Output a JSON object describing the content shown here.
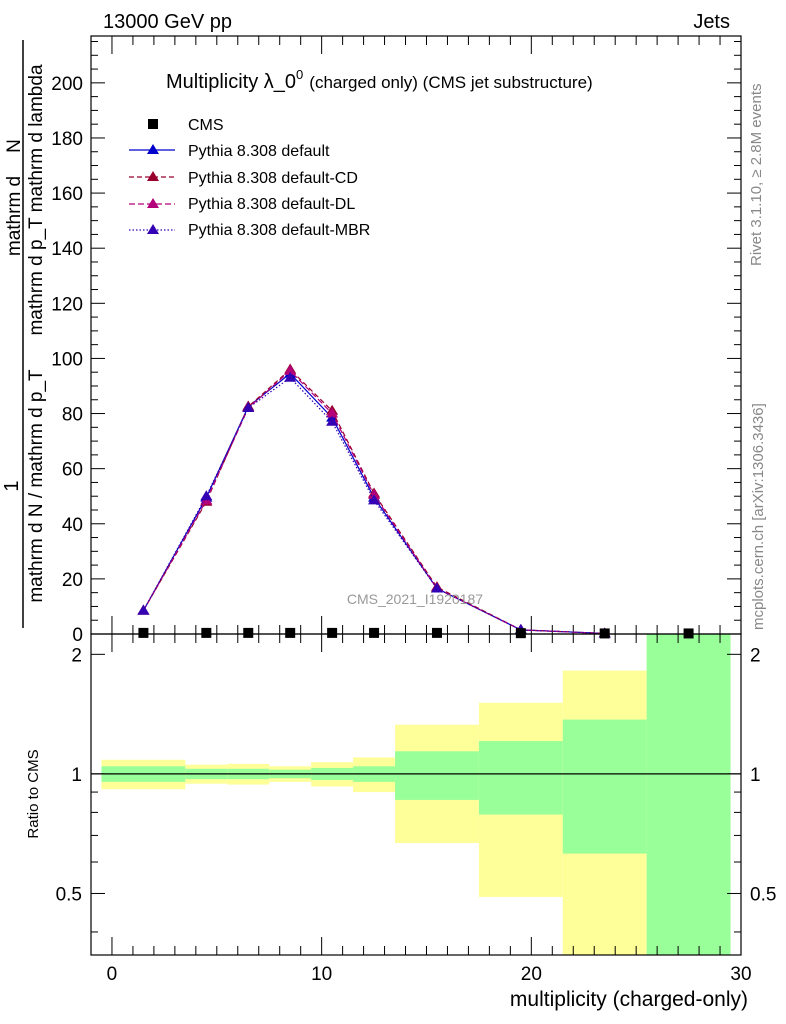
{
  "header": {
    "left": "13000 GeV pp",
    "right": "Jets"
  },
  "side_labels": {
    "rivet": "Rivet 3.1.10, ≥ 2.8M events",
    "mcplots": "mcplots.cern.ch [arXiv:1306.3436]"
  },
  "watermark": "CMS_2021_I1920187",
  "colors": {
    "default": "#0000cc",
    "default_cd": "#99002e",
    "default_dl": "#b3007a",
    "default_mbr": "#3300b3",
    "band_inner": "#99ff99",
    "band_outer": "#ffff99"
  },
  "chart_data": [
    {
      "type": "line",
      "title": "Multiplicity λ_0",
      "title_sup": "0",
      "title_suffix": "(charged only) (CMS jet substructure)",
      "xlabel": "",
      "ylabel_numerator": "1",
      "ylabel_denominator": "mathrm d N / mathrm d p_T",
      "ylabel_rest": "mathrm d",
      "ylabel_rest2": "N",
      "ylabel_rest3": "mathrm d p_T mathrm d lambda",
      "xlim": [
        -1,
        30
      ],
      "ylim": [
        0,
        217
      ],
      "yticks": [
        0,
        20,
        40,
        60,
        80,
        100,
        120,
        140,
        160,
        180,
        200
      ],
      "legend": [
        "CMS",
        "Pythia 8.308 default",
        "Pythia 8.308 default-CD",
        "Pythia 8.308 default-DL",
        "Pythia 8.308 default-MBR"
      ],
      "legend_position": "top-left",
      "cms": {
        "name": "CMS",
        "x": [
          1.5,
          4.5,
          6.5,
          8.5,
          10.5,
          12.5,
          15.5,
          19.5,
          23.5,
          27.5
        ],
        "y": [
          0.4,
          0.4,
          0.4,
          0.4,
          0.4,
          0.4,
          0.4,
          0.3,
          0.2,
          0.2
        ]
      },
      "series": [
        {
          "name": "Pythia 8.308 default",
          "x": [
            1.5,
            4.5,
            6.5,
            8.5,
            10.5,
            12.5,
            15.5,
            19.5,
            23.5
          ],
          "values": [
            8.5,
            49.5,
            82.5,
            94.5,
            78.5,
            49.5,
            16.5,
            1.5,
            0.2
          ]
        },
        {
          "name": "Pythia 8.308 default-CD",
          "x": [
            1.5,
            4.5,
            6.5,
            8.5,
            10.5,
            12.5,
            15.5,
            19.5,
            23.5
          ],
          "values": [
            8.5,
            48,
            82.5,
            96,
            81,
            51,
            17,
            1.5,
            0.2
          ]
        },
        {
          "name": "Pythia 8.308 default-DL",
          "x": [
            1.5,
            4.5,
            6.5,
            8.5,
            10.5,
            12.5,
            15.5,
            19.5,
            23.5
          ],
          "values": [
            8.5,
            48.5,
            82,
            95.5,
            80,
            50.5,
            16.5,
            1.5,
            0.2
          ]
        },
        {
          "name": "Pythia 8.308 default-MBR",
          "x": [
            1.5,
            4.5,
            6.5,
            8.5,
            10.5,
            12.5,
            15.5,
            19.5,
            23.5
          ],
          "values": [
            8.5,
            50,
            82,
            93,
            77,
            48.5,
            16.5,
            1.5,
            0.2
          ]
        }
      ]
    },
    {
      "type": "area",
      "xlabel": "multiplicity (charged-only)",
      "ylabel": "Ratio to CMS",
      "xlim": [
        -1,
        30
      ],
      "ylim": [
        0.35,
        2.25
      ],
      "xticks": [
        0,
        10,
        20,
        30
      ],
      "yticks": [
        0.5,
        1,
        2
      ],
      "reference_line": 1,
      "bins": [
        {
          "xlo": -0.5,
          "xhi": 3.5,
          "inner": [
            0.955,
            1.045
          ],
          "outer": [
            0.915,
            1.085
          ]
        },
        {
          "xlo": 3.5,
          "xhi": 5.5,
          "inner": [
            0.97,
            1.03
          ],
          "outer": [
            0.945,
            1.055
          ]
        },
        {
          "xlo": 5.5,
          "xhi": 7.5,
          "inner": [
            0.97,
            1.03
          ],
          "outer": [
            0.94,
            1.06
          ]
        },
        {
          "xlo": 7.5,
          "xhi": 9.5,
          "inner": [
            0.975,
            1.025
          ],
          "outer": [
            0.955,
            1.045
          ]
        },
        {
          "xlo": 9.5,
          "xhi": 11.5,
          "inner": [
            0.965,
            1.035
          ],
          "outer": [
            0.93,
            1.07
          ]
        },
        {
          "xlo": 11.5,
          "xhi": 13.5,
          "inner": [
            0.955,
            1.045
          ],
          "outer": [
            0.9,
            1.1
          ]
        },
        {
          "xlo": 13.5,
          "xhi": 17.5,
          "inner": [
            0.86,
            1.14
          ],
          "outer": [
            0.67,
            1.33
          ]
        },
        {
          "xlo": 17.5,
          "xhi": 21.5,
          "inner": [
            0.79,
            1.21
          ],
          "outer": [
            0.49,
            1.51
          ]
        },
        {
          "xlo": 21.5,
          "xhi": 25.5,
          "inner": [
            0.63,
            1.37
          ],
          "outer": [
            0.35,
            1.82
          ]
        },
        {
          "xlo": 25.5,
          "xhi": 29.5,
          "inner": [
            0.35,
            2.25
          ],
          "outer": [
            0.35,
            2.25
          ]
        }
      ]
    }
  ]
}
